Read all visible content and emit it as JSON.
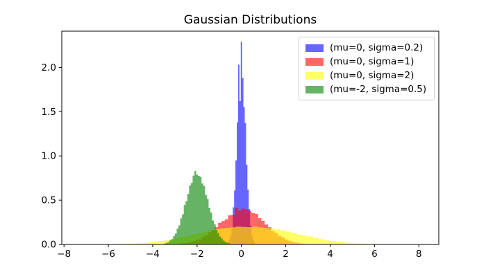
{
  "title": "Gaussian Distributions",
  "chart_data": {
    "type": "bar",
    "subtype": "histogram-density",
    "title": "Gaussian Distributions",
    "xlabel": "",
    "ylabel": "",
    "xlim": [
      -8.1,
      8.9
    ],
    "ylim": [
      0,
      2.41
    ],
    "x_ticks": [
      -8,
      -6,
      -4,
      -2,
      0,
      2,
      4,
      6,
      8
    ],
    "x_tick_labels": [
      "−8",
      "−6",
      "−4",
      "−2",
      "0",
      "2",
      "4",
      "6",
      "8"
    ],
    "y_ticks": [
      0.0,
      0.5,
      1.0,
      1.5,
      2.0
    ],
    "y_tick_labels": [
      "0.0",
      "0.5",
      "1.0",
      "1.5",
      "2.0"
    ],
    "grid": false,
    "legend_position": "upper right",
    "bar_alpha": 0.6,
    "axis_color": "#000000",
    "series": [
      {
        "name": "(mu=0, sigma=0.2)",
        "mu": 0,
        "sigma": 0.2,
        "color": "#0000ff",
        "legend_swatch_composited": "#6666ff",
        "bin_start": -0.63,
        "bin_width": 0.06,
        "heights": [
          0.03,
          0.06,
          0.1,
          0.19,
          0.42,
          0.61,
          0.95,
          1.38,
          2.03,
          1.62,
          2.29,
          1.88,
          1.55,
          1.37,
          0.9,
          0.62,
          0.4,
          0.21,
          0.1,
          0.05,
          0.02
        ]
      },
      {
        "name": "(mu=0, sigma=1)",
        "mu": 0,
        "sigma": 1,
        "color": "#ff0000",
        "legend_swatch_composited": "#ff6666",
        "bin_start": -3.45,
        "bin_width": 0.15,
        "heights": [
          0.001,
          0.002,
          0.003,
          0.005,
          0.008,
          0.012,
          0.016,
          0.025,
          0.034,
          0.045,
          0.06,
          0.085,
          0.103,
          0.138,
          0.16,
          0.195,
          0.245,
          0.265,
          0.285,
          0.33,
          0.335,
          0.415,
          0.386,
          0.405,
          0.396,
          0.38,
          0.355,
          0.345,
          0.296,
          0.266,
          0.225,
          0.195,
          0.152,
          0.128,
          0.098,
          0.08,
          0.057,
          0.043,
          0.029,
          0.022,
          0.014,
          0.01,
          0.006,
          0.004,
          0.002,
          0.001
        ]
      },
      {
        "name": "(mu=0, sigma=2)",
        "mu": 0,
        "sigma": 2,
        "color": "#ffff00",
        "legend_swatch_composited": "#ffff66",
        "bin_start": -6.5,
        "bin_width": 0.25,
        "heights": [
          0.001,
          0.002,
          0.003,
          0.004,
          0.005,
          0.007,
          0.01,
          0.013,
          0.017,
          0.024,
          0.031,
          0.039,
          0.046,
          0.057,
          0.073,
          0.086,
          0.097,
          0.115,
          0.126,
          0.146,
          0.158,
          0.172,
          0.18,
          0.188,
          0.194,
          0.201,
          0.198,
          0.196,
          0.201,
          0.193,
          0.185,
          0.18,
          0.17,
          0.158,
          0.145,
          0.13,
          0.112,
          0.097,
          0.088,
          0.072,
          0.059,
          0.046,
          0.038,
          0.031,
          0.023,
          0.018,
          0.013,
          0.01,
          0.007,
          0.005,
          0.004,
          0.002,
          0.001
        ]
      },
      {
        "name": "(mu=-2, sigma=0.5)",
        "mu": -2,
        "sigma": 0.5,
        "color": "#008000",
        "legend_swatch_composited": "#66b366",
        "bin_start": -3.56,
        "bin_width": 0.08,
        "heights": [
          0.007,
          0.012,
          0.02,
          0.028,
          0.047,
          0.062,
          0.095,
          0.122,
          0.178,
          0.215,
          0.295,
          0.34,
          0.445,
          0.49,
          0.57,
          0.668,
          0.695,
          0.778,
          0.83,
          0.79,
          0.775,
          0.765,
          0.69,
          0.662,
          0.56,
          0.515,
          0.415,
          0.36,
          0.27,
          0.228,
          0.165,
          0.13,
          0.09,
          0.067,
          0.044,
          0.031,
          0.019,
          0.013,
          0.008,
          0.005
        ]
      }
    ]
  }
}
